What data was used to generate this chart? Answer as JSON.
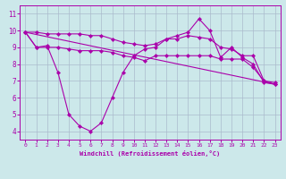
{
  "xlabel": "Windchill (Refroidissement éolien,°C)",
  "bg_color": "#cce8ea",
  "line_color": "#aa00aa",
  "grid_color": "#aabbcc",
  "xlim": [
    -0.5,
    23.5
  ],
  "ylim": [
    3.5,
    11.5
  ],
  "xticks": [
    0,
    1,
    2,
    3,
    4,
    5,
    6,
    7,
    8,
    9,
    10,
    11,
    12,
    13,
    14,
    15,
    16,
    17,
    18,
    19,
    20,
    21,
    22,
    23
  ],
  "yticks": [
    4,
    5,
    6,
    7,
    8,
    9,
    10,
    11
  ],
  "line1_x": [
    0,
    1,
    2,
    3,
    4,
    5,
    6,
    7,
    8,
    9,
    10,
    11,
    12,
    13,
    14,
    15,
    16,
    17,
    18,
    19,
    20,
    21,
    22,
    23
  ],
  "line1_y": [
    9.9,
    9.0,
    9.1,
    7.5,
    5.0,
    4.3,
    4.0,
    4.5,
    6.0,
    7.5,
    8.5,
    8.9,
    9.0,
    9.5,
    9.7,
    9.9,
    10.7,
    10.0,
    8.4,
    9.0,
    8.4,
    8.0,
    6.9,
    6.8
  ],
  "line2_x": [
    0,
    1,
    2,
    3,
    4,
    5,
    6,
    7,
    8,
    9,
    10,
    11,
    12,
    13,
    14,
    15,
    16,
    17,
    18,
    19,
    20,
    21,
    22,
    23
  ],
  "line2_y": [
    9.9,
    9.9,
    9.8,
    9.8,
    9.8,
    9.8,
    9.7,
    9.7,
    9.5,
    9.3,
    9.2,
    9.1,
    9.2,
    9.5,
    9.5,
    9.7,
    9.6,
    9.5,
    9.0,
    8.9,
    8.5,
    8.5,
    7.0,
    6.9
  ],
  "line3_x": [
    0,
    1,
    2,
    3,
    4,
    5,
    6,
    7,
    8,
    9,
    10,
    11,
    12,
    13,
    14,
    15,
    16,
    17,
    18,
    19,
    20,
    21,
    22,
    23
  ],
  "line3_y": [
    9.9,
    9.0,
    9.0,
    9.0,
    8.9,
    8.8,
    8.8,
    8.8,
    8.7,
    8.5,
    8.4,
    8.2,
    8.5,
    8.5,
    8.5,
    8.5,
    8.5,
    8.5,
    8.3,
    8.3,
    8.3,
    7.8,
    7.0,
    6.8
  ],
  "line4_x": [
    0,
    23
  ],
  "line4_y": [
    9.9,
    6.8
  ]
}
